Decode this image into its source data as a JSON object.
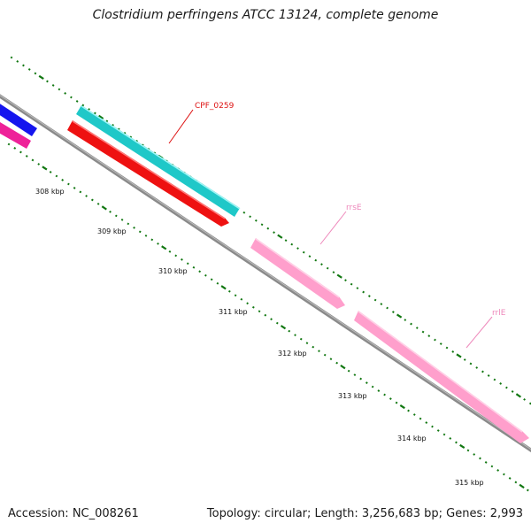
{
  "title": "Clostridium perfringens ATCC 13124, complete genome",
  "footer": {
    "accession": "Accession: NC_008261",
    "summary": "Topology: circular; Length: 3,256,683 bp; Genes: 2,993"
  },
  "colors": {
    "backbone": "#8a8a8a",
    "tick": "#117711",
    "cds_forward": "#1fc8c8",
    "cds_reverse": "#ee1111",
    "rrna": "#ff9fcc",
    "label_cds": "#dd1111",
    "label_rrna": "#ee88bb"
  },
  "scale_labels": [
    "308 kbp",
    "309 kbp",
    "310 kbp",
    "311 kbp",
    "312 kbp",
    "313 kbp",
    "314 kbp",
    "315 kbp"
  ],
  "features": [
    {
      "name": "partial-blue-feature",
      "color": "#1515ee"
    },
    {
      "name": "partial-magenta-feature",
      "color": "#ee2299"
    },
    {
      "name": "cds-forward",
      "color": "#1fc8c8"
    },
    {
      "name": "cds-reverse",
      "color": "#ee1111"
    },
    {
      "name": "rrse-feature",
      "color": "#ff9fcc"
    },
    {
      "name": "rrle-feature",
      "color": "#ff9fcc"
    }
  ],
  "feature_labels": {
    "cpf": "CPF_0259",
    "rrse": "rrsE",
    "rrle": "rrlE"
  }
}
